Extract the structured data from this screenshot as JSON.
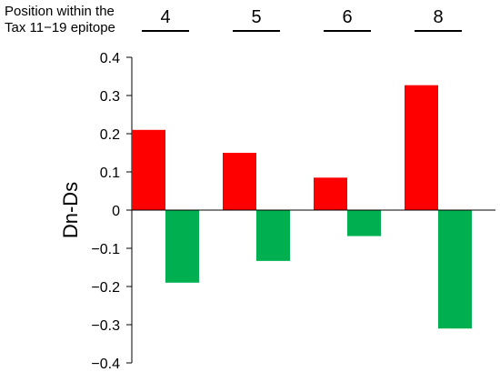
{
  "chart_data": {
    "type": "bar",
    "header_lines": [
      "Position within the",
      "Tax 11−19 epitope"
    ],
    "categories": [
      "4",
      "5",
      "6",
      "8"
    ],
    "ylabel": "Dn-Ds",
    "ylim": [
      -0.4,
      0.4
    ],
    "y_ticks": [
      {
        "value": 0.4,
        "label": "0.4"
      },
      {
        "value": 0.3,
        "label": "0.3"
      },
      {
        "value": 0.2,
        "label": "0.2"
      },
      {
        "value": 0.1,
        "label": "0.1"
      },
      {
        "value": 0,
        "label": "0"
      },
      {
        "value": -0.1,
        "label": "−0.1"
      },
      {
        "value": -0.2,
        "label": "−0.2"
      },
      {
        "value": -0.3,
        "label": "−0.3"
      },
      {
        "value": -0.4,
        "label": "−0.4"
      }
    ],
    "series": [
      {
        "color": "#ff0000",
        "values": [
          0.21,
          0.15,
          0.085,
          0.327
        ]
      },
      {
        "color": "#00b050",
        "values": [
          -0.19,
          -0.133,
          -0.068,
          -0.31
        ]
      }
    ],
    "grid": false,
    "legend": "none"
  }
}
